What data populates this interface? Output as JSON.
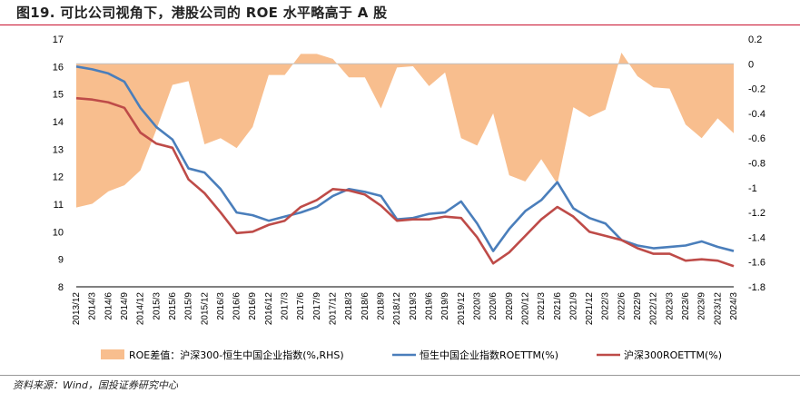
{
  "header": {
    "title": "图19. 可比公司视角下，港股公司的 ROE 水平略高于 A 股"
  },
  "footer": {
    "source": "资料来源：Wind，国投证券研究中心"
  },
  "colors": {
    "diff_area": "#F8BE8E",
    "hk_line": "#4A7EBB",
    "csi_line": "#BE4B48",
    "rule_red": "#c8102e"
  },
  "chart_data": {
    "type": "line",
    "title": "",
    "xlabel": "",
    "ylabel": "",
    "ylim": [
      8,
      17
    ],
    "y_ticks": [
      8,
      9,
      10,
      11,
      12,
      13,
      14,
      15,
      16,
      17
    ],
    "y2lim": [
      -1.8,
      0.2
    ],
    "y2_ticks": [
      -1.8,
      -1.6,
      -1.4,
      -1.2,
      -1,
      -0.8,
      -0.6,
      -0.4,
      -0.2,
      0,
      0.2
    ],
    "grid": false,
    "legend_position": "bottom",
    "x": [
      "2013/12",
      "2014/3",
      "2014/6",
      "2014/9",
      "2014/12",
      "2015/3",
      "2015/6",
      "2015/9",
      "2015/12",
      "2016/3",
      "2016/6",
      "2016/9",
      "2016/12",
      "2017/3",
      "2017/6",
      "2017/9",
      "2017/12",
      "2018/3",
      "2018/6",
      "2018/9",
      "2018/12",
      "2019/3",
      "2019/6",
      "2019/9",
      "2019/12",
      "2020/3",
      "2020/6",
      "2020/9",
      "2020/12",
      "2021/3",
      "2021/6",
      "2021/9",
      "2021/12",
      "2022/3",
      "2022/6",
      "2022/9",
      "2022/12",
      "2023/3",
      "2023/6",
      "2023/9",
      "2023/12",
      "2024/3"
    ],
    "series": [
      {
        "name": "ROE差值：沪深300-恒生中国企业指数(%,RHS)",
        "type": "area",
        "axis": "right",
        "values": [
          -1.16,
          -1.13,
          -1.03,
          -0.98,
          -0.86,
          -0.53,
          -0.17,
          -0.14,
          -0.65,
          -0.6,
          -0.68,
          -0.51,
          -0.09,
          -0.09,
          0.08,
          0.08,
          0.04,
          -0.11,
          -0.11,
          -0.36,
          -0.03,
          -0.02,
          -0.18,
          -0.07,
          -0.6,
          -0.66,
          -0.4,
          -0.9,
          -0.95,
          -0.77,
          -0.97,
          -0.35,
          -0.43,
          -0.37,
          0.09,
          -0.1,
          -0.19,
          -0.2,
          -0.49,
          -0.6,
          -0.44,
          -0.56
        ]
      },
      {
        "name": "恒生中国企业指数ROETTM(%)",
        "type": "line",
        "axis": "left",
        "values": [
          16.0,
          15.9,
          15.75,
          15.45,
          14.5,
          13.8,
          13.35,
          12.3,
          12.15,
          11.55,
          10.7,
          10.6,
          10.4,
          10.55,
          10.7,
          10.9,
          11.3,
          11.55,
          11.45,
          11.3,
          10.45,
          10.5,
          10.65,
          10.7,
          11.1,
          10.3,
          9.3,
          10.1,
          10.75,
          11.15,
          11.8,
          10.85,
          10.5,
          10.3,
          9.7,
          9.5,
          9.4,
          9.45,
          9.5,
          9.65,
          9.45,
          9.3
        ]
      },
      {
        "name": "沪深300ROETTM(%)",
        "type": "line",
        "axis": "left",
        "values": [
          14.85,
          14.8,
          14.7,
          14.5,
          13.6,
          13.2,
          13.05,
          11.9,
          11.4,
          10.7,
          9.95,
          10.0,
          10.25,
          10.4,
          10.9,
          11.15,
          11.55,
          11.5,
          11.35,
          10.95,
          10.4,
          10.45,
          10.45,
          10.55,
          10.5,
          9.8,
          8.85,
          9.25,
          9.85,
          10.45,
          10.9,
          10.55,
          10.0,
          9.85,
          9.7,
          9.4,
          9.2,
          9.2,
          8.95,
          9.0,
          8.95,
          8.75
        ]
      }
    ]
  }
}
